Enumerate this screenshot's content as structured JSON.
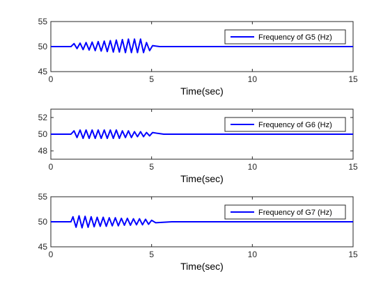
{
  "figure": {
    "background": "#ffffff",
    "axes_color": "#262626",
    "line_color": "#0000ff"
  },
  "chart_data": [
    {
      "type": "line",
      "xlabel": "Time(sec)",
      "ylabel": "",
      "xlim": [
        0,
        15
      ],
      "ylim": [
        45,
        55
      ],
      "xticks": [
        "0",
        "5",
        "10",
        "15"
      ],
      "yticks": [
        "45",
        "50",
        "55"
      ],
      "legend_position": "top-right",
      "grid": false,
      "series": [
        {
          "name": "Frequency of G5 (Hz)",
          "color": "#0000ff",
          "x": [
            0,
            1.0,
            1.15,
            1.3,
            1.45,
            1.6,
            1.75,
            1.9,
            2.05,
            2.2,
            2.35,
            2.5,
            2.65,
            2.8,
            2.95,
            3.1,
            3.25,
            3.4,
            3.55,
            3.7,
            3.85,
            4.0,
            4.15,
            4.3,
            4.45,
            4.6,
            4.75,
            4.9,
            5.05,
            5.2,
            5.4,
            6.0,
            15
          ],
          "y": [
            50,
            50,
            50.6,
            49.6,
            50.7,
            49.4,
            50.8,
            49.3,
            50.9,
            49.2,
            51.0,
            49.1,
            51.1,
            49.0,
            51.2,
            48.9,
            51.3,
            48.9,
            51.4,
            48.8,
            51.5,
            48.8,
            51.5,
            48.8,
            51.5,
            48.8,
            50.8,
            49.2,
            50.2,
            50.1,
            50.0,
            50.0,
            50.0
          ]
        }
      ]
    },
    {
      "type": "line",
      "xlabel": "Time(sec)",
      "ylabel": "",
      "xlim": [
        0,
        15
      ],
      "ylim": [
        47,
        53
      ],
      "xticks": [
        "0",
        "5",
        "10",
        "15"
      ],
      "yticks": [
        "48",
        "50",
        "52"
      ],
      "legend_position": "top-right",
      "grid": false,
      "series": [
        {
          "name": "Frequency of G6 (Hz)",
          "color": "#0000ff",
          "x": [
            0,
            1.0,
            1.15,
            1.3,
            1.45,
            1.6,
            1.75,
            1.9,
            2.05,
            2.2,
            2.35,
            2.5,
            2.65,
            2.8,
            2.95,
            3.1,
            3.25,
            3.4,
            3.55,
            3.7,
            3.85,
            4.0,
            4.15,
            4.3,
            4.45,
            4.6,
            4.75,
            4.9,
            5.05,
            5.3,
            5.6,
            15
          ],
          "y": [
            50,
            50,
            50.4,
            49.6,
            50.5,
            49.5,
            50.5,
            49.5,
            50.5,
            49.5,
            50.5,
            49.5,
            50.5,
            49.5,
            50.5,
            49.5,
            50.5,
            49.5,
            50.4,
            49.6,
            50.4,
            49.6,
            50.3,
            49.7,
            50.3,
            49.7,
            50.2,
            49.8,
            50.2,
            50.1,
            50.0,
            50.0
          ]
        }
      ]
    },
    {
      "type": "line",
      "xlabel": "Time(sec)",
      "ylabel": "",
      "xlim": [
        0,
        15
      ],
      "ylim": [
        45,
        55
      ],
      "xticks": [
        "0",
        "5",
        "10",
        "15"
      ],
      "yticks": [
        "45",
        "50",
        "55"
      ],
      "legend_position": "top-right",
      "grid": false,
      "series": [
        {
          "name": "Frequency of G7 (Hz)",
          "color": "#0000ff",
          "x": [
            0,
            1.0,
            1.1,
            1.25,
            1.4,
            1.55,
            1.7,
            1.85,
            2.0,
            2.15,
            2.3,
            2.45,
            2.6,
            2.75,
            2.9,
            3.05,
            3.2,
            3.35,
            3.5,
            3.65,
            3.8,
            3.95,
            4.1,
            4.25,
            4.4,
            4.55,
            4.7,
            4.85,
            5.0,
            5.2,
            6.0,
            15
          ],
          "y": [
            50,
            50,
            51.0,
            48.9,
            51.2,
            48.8,
            51.1,
            48.9,
            51.0,
            49.0,
            50.9,
            49.1,
            50.9,
            49.1,
            50.8,
            49.2,
            50.8,
            49.2,
            50.7,
            49.3,
            50.7,
            49.3,
            50.6,
            49.4,
            50.6,
            49.4,
            50.5,
            49.5,
            50.3,
            49.8,
            50.0,
            50.0
          ]
        }
      ]
    }
  ]
}
